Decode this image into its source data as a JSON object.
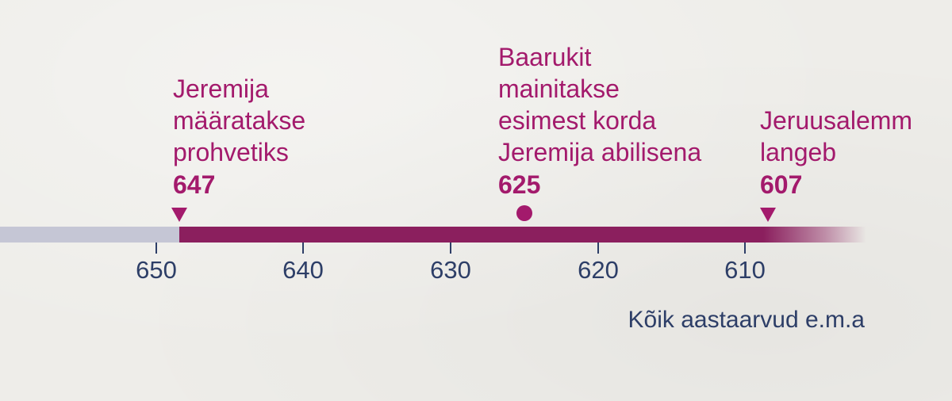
{
  "events": [
    {
      "lines": [
        "Jeremija",
        "määratakse",
        "prohvetiks"
      ],
      "year": "647",
      "marker": "triangle"
    },
    {
      "lines": [
        "Baarukit",
        "mainitakse",
        "esimest korda",
        "Jeremija abilisena"
      ],
      "year": "625",
      "marker": "dot"
    },
    {
      "lines": [
        "Jeruusalemm",
        "langeb"
      ],
      "year": "607",
      "marker": "triangle"
    }
  ],
  "axis": {
    "ticks": [
      "650",
      "640",
      "630",
      "620",
      "610"
    ]
  },
  "footnote": "Kõik aastaarvud e.m.a",
  "colors": {
    "accent": "#a31a6c",
    "bar": "#8b1f5e",
    "bar_before": "#c5c6d5",
    "axis_text": "#2d3e67",
    "background": "#eeede9"
  }
}
